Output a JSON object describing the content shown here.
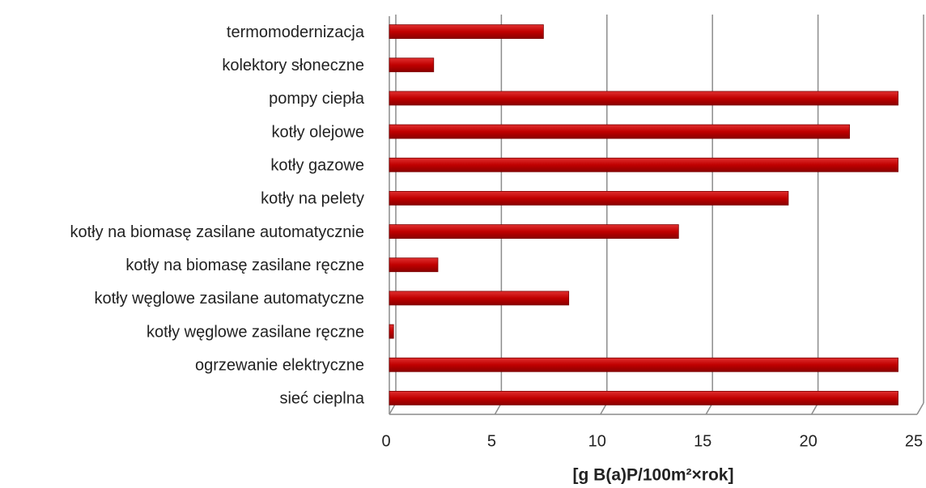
{
  "chart_data": {
    "type": "bar",
    "orientation": "horizontal",
    "categories": [
      "termomodernizacja",
      "kolektory słoneczne",
      "pompy ciepła",
      "kotły olejowe",
      "kotły gazowe",
      "kotły na pelety",
      "kotły na biomasę zasilane automatycznie",
      "kotły na biomasę zasilane ręczne",
      "kotły węglowe zasilane automatyczne",
      "kotły węglowe zasilane ręczne",
      "ogrzewanie elektryczne",
      "sieć cieplna"
    ],
    "values": [
      7.3,
      2.1,
      24.1,
      21.8,
      24.1,
      18.9,
      13.7,
      2.3,
      8.5,
      0.2,
      24.1,
      24.1
    ],
    "color": "#c00000",
    "xlim": [
      0,
      25
    ],
    "xticks": [
      0,
      5,
      10,
      15,
      20,
      25
    ],
    "x_label": "[g B(a)P/100m²×rok]",
    "grid": true
  }
}
